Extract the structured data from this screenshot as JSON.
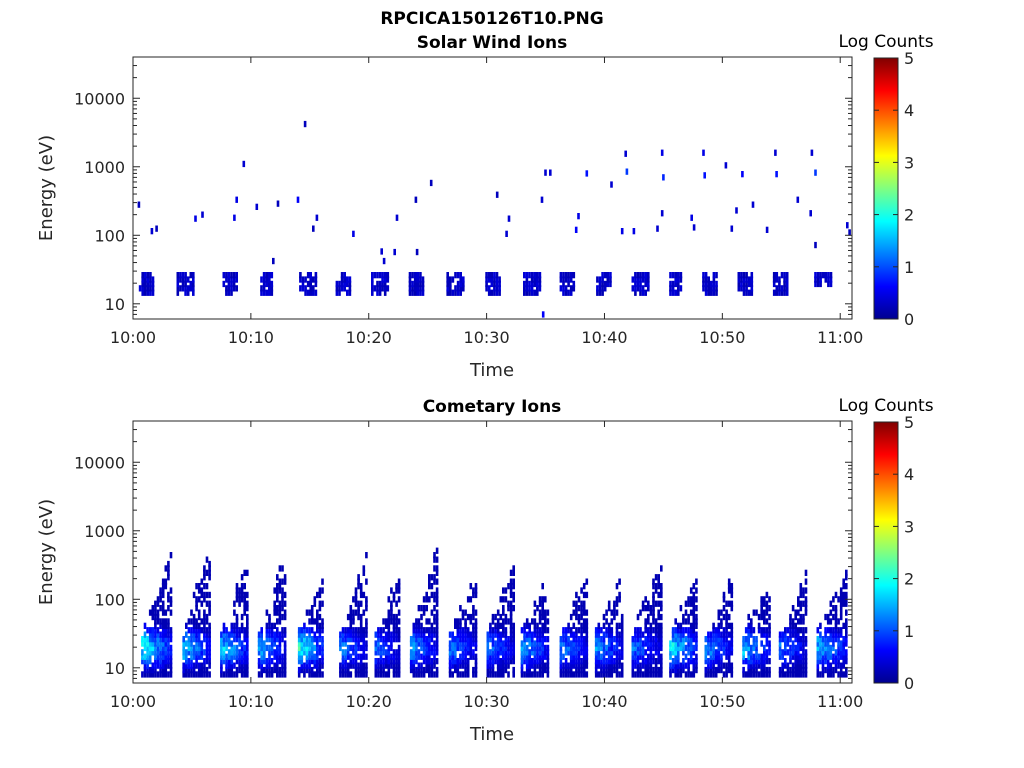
{
  "figure_title": "RPCICA150126T10.PNG",
  "chart_data": [
    {
      "type": "heatmap",
      "title": "Solar Wind Ions",
      "xlabel": "Time",
      "ylabel": "Energy (eV)",
      "x_ticks": [
        "10:00",
        "10:10",
        "10:20",
        "10:30",
        "10:40",
        "10:50",
        "11:00"
      ],
      "x_range_minutes": [
        0,
        61
      ],
      "y_scale": "log",
      "y_ticks": [
        "10",
        "100",
        "1000",
        "10000"
      ],
      "y_range": [
        6,
        40000
      ],
      "colorbar": {
        "label": "Log Counts",
        "ticks": [
          "0",
          "1",
          "2",
          "3",
          "4",
          "5"
        ],
        "range": [
          0,
          5
        ],
        "colormap": "jet"
      },
      "bands": [
        {
          "t0": 0.6,
          "t1": 1.7,
          "e0": 13,
          "e1": 28,
          "z": 0.35
        },
        {
          "t0": 3.8,
          "t1": 5.2,
          "e0": 13,
          "e1": 28,
          "z": 0.35
        },
        {
          "t0": 7.7,
          "t1": 9.0,
          "e0": 13,
          "e1": 28,
          "z": 0.35
        },
        {
          "t0": 10.9,
          "t1": 12.0,
          "e0": 13,
          "e1": 28,
          "z": 0.35
        },
        {
          "t0": 14.2,
          "t1": 15.6,
          "e0": 13,
          "e1": 28,
          "z": 0.35
        },
        {
          "t0": 17.3,
          "t1": 18.6,
          "e0": 13,
          "e1": 28,
          "z": 0.35
        },
        {
          "t0": 20.3,
          "t1": 21.7,
          "e0": 13,
          "e1": 28,
          "z": 0.35
        },
        {
          "t0": 23.5,
          "t1": 24.8,
          "e0": 13,
          "e1": 28,
          "z": 0.35
        },
        {
          "t0": 26.7,
          "t1": 28.2,
          "e0": 13,
          "e1": 28,
          "z": 0.35
        },
        {
          "t0": 30.0,
          "t1": 31.3,
          "e0": 13,
          "e1": 28,
          "z": 0.35
        },
        {
          "t0": 33.2,
          "t1": 34.6,
          "e0": 13,
          "e1": 30,
          "z": 0.35
        },
        {
          "t0": 36.3,
          "t1": 37.5,
          "e0": 13,
          "e1": 30,
          "z": 0.35
        },
        {
          "t0": 39.4,
          "t1": 40.5,
          "e0": 13,
          "e1": 30,
          "z": 0.35
        },
        {
          "t0": 42.4,
          "t1": 43.8,
          "e0": 13,
          "e1": 30,
          "z": 0.35
        },
        {
          "t0": 45.6,
          "t1": 46.6,
          "e0": 13,
          "e1": 28,
          "z": 0.35
        },
        {
          "t0": 48.4,
          "t1": 49.6,
          "e0": 13,
          "e1": 28,
          "z": 0.35
        },
        {
          "t0": 51.4,
          "t1": 52.7,
          "e0": 13,
          "e1": 30,
          "z": 0.35
        },
        {
          "t0": 54.4,
          "t1": 55.5,
          "e0": 13,
          "e1": 28,
          "z": 0.35
        },
        {
          "t0": 57.9,
          "t1": 59.3,
          "e0": 17,
          "e1": 28,
          "z": 0.35
        }
      ],
      "points": [
        {
          "t": 0.5,
          "e": 280,
          "z": 0.3
        },
        {
          "t": 1.6,
          "e": 115,
          "z": 0.4
        },
        {
          "t": 2.0,
          "e": 125,
          "z": 0.3
        },
        {
          "t": 5.3,
          "e": 175,
          "z": 0.5
        },
        {
          "t": 5.9,
          "e": 200,
          "z": 0.4
        },
        {
          "t": 8.6,
          "e": 180,
          "z": 0.5
        },
        {
          "t": 8.8,
          "e": 330,
          "z": 0.5
        },
        {
          "t": 9.4,
          "e": 1100,
          "z": 0.4
        },
        {
          "t": 10.5,
          "e": 260,
          "z": 0.4
        },
        {
          "t": 11.9,
          "e": 42,
          "z": 0.3
        },
        {
          "t": 12.3,
          "e": 290,
          "z": 0.3
        },
        {
          "t": 14.0,
          "e": 330,
          "z": 0.6
        },
        {
          "t": 14.6,
          "e": 4200,
          "z": 0.3
        },
        {
          "t": 15.3,
          "e": 125,
          "z": 0.3
        },
        {
          "t": 15.6,
          "e": 180,
          "z": 0.4
        },
        {
          "t": 18.7,
          "e": 105,
          "z": 0.5
        },
        {
          "t": 21.1,
          "e": 58,
          "z": 0.4
        },
        {
          "t": 21.3,
          "e": 42,
          "z": 0.4
        },
        {
          "t": 22.2,
          "e": 57,
          "z": 0.4
        },
        {
          "t": 22.4,
          "e": 180,
          "z": 0.4
        },
        {
          "t": 24.0,
          "e": 330,
          "z": 0.3
        },
        {
          "t": 24.1,
          "e": 57,
          "z": 0.3
        },
        {
          "t": 25.3,
          "e": 580,
          "z": 0.3
        },
        {
          "t": 30.9,
          "e": 390,
          "z": 0.3
        },
        {
          "t": 31.7,
          "e": 105,
          "z": 0.4
        },
        {
          "t": 31.9,
          "e": 175,
          "z": 0.4
        },
        {
          "t": 34.7,
          "e": 330,
          "z": 0.4
        },
        {
          "t": 34.8,
          "e": 7,
          "z": 0.6
        },
        {
          "t": 35.0,
          "e": 820,
          "z": 0.4
        },
        {
          "t": 35.4,
          "e": 820,
          "z": 0.4
        },
        {
          "t": 37.6,
          "e": 120,
          "z": 0.6
        },
        {
          "t": 37.8,
          "e": 190,
          "z": 0.5
        },
        {
          "t": 38.5,
          "e": 800,
          "z": 0.7
        },
        {
          "t": 40.6,
          "e": 550,
          "z": 0.4
        },
        {
          "t": 41.5,
          "e": 115,
          "z": 0.5
        },
        {
          "t": 41.8,
          "e": 1550,
          "z": 0.4
        },
        {
          "t": 41.9,
          "e": 850,
          "z": 0.9
        },
        {
          "t": 42.5,
          "e": 115,
          "z": 0.5
        },
        {
          "t": 44.5,
          "e": 125,
          "z": 0.4
        },
        {
          "t": 44.9,
          "e": 210,
          "z": 0.4
        },
        {
          "t": 44.9,
          "e": 1600,
          "z": 0.5
        },
        {
          "t": 45.0,
          "e": 700,
          "z": 0.8
        },
        {
          "t": 47.4,
          "e": 180,
          "z": 0.5
        },
        {
          "t": 47.6,
          "e": 130,
          "z": 0.4
        },
        {
          "t": 48.4,
          "e": 1600,
          "z": 0.5
        },
        {
          "t": 48.5,
          "e": 750,
          "z": 0.7
        },
        {
          "t": 50.3,
          "e": 1050,
          "z": 0.4
        },
        {
          "t": 50.8,
          "e": 125,
          "z": 0.4
        },
        {
          "t": 51.2,
          "e": 230,
          "z": 0.4
        },
        {
          "t": 51.7,
          "e": 780,
          "z": 0.6
        },
        {
          "t": 52.6,
          "e": 280,
          "z": 0.4
        },
        {
          "t": 53.8,
          "e": 120,
          "z": 0.4
        },
        {
          "t": 54.5,
          "e": 1600,
          "z": 0.4
        },
        {
          "t": 54.6,
          "e": 780,
          "z": 0.7
        },
        {
          "t": 56.4,
          "e": 330,
          "z": 0.4
        },
        {
          "t": 57.5,
          "e": 210,
          "z": 0.4
        },
        {
          "t": 57.6,
          "e": 1600,
          "z": 0.4
        },
        {
          "t": 57.9,
          "e": 820,
          "z": 0.9
        },
        {
          "t": 57.9,
          "e": 72,
          "z": 0.3
        },
        {
          "t": 60.6,
          "e": 140,
          "z": 0.4
        },
        {
          "t": 60.8,
          "e": 110,
          "z": 0.3
        }
      ]
    },
    {
      "type": "heatmap",
      "title": "Cometary Ions",
      "xlabel": "Time",
      "ylabel": "Energy (eV)",
      "x_ticks": [
        "10:00",
        "10:10",
        "10:20",
        "10:30",
        "10:40",
        "10:50",
        "11:00"
      ],
      "x_range_minutes": [
        0,
        61
      ],
      "y_scale": "log",
      "y_ticks": [
        "10",
        "100",
        "1000",
        "10000"
      ],
      "y_range": [
        6,
        40000
      ],
      "colorbar": {
        "label": "Log Counts",
        "ticks": [
          "0",
          "1",
          "2",
          "3",
          "4",
          "5"
        ],
        "range": [
          0,
          5
        ],
        "colormap": "jet"
      },
      "bursts": [
        {
          "t0": 0.8,
          "t1": 3.2,
          "emax_top": 420,
          "zmax": 2.0
        },
        {
          "t0": 4.3,
          "t1": 6.4,
          "emax_top": 550,
          "zmax": 1.7
        },
        {
          "t0": 7.5,
          "t1": 9.6,
          "emax_top": 400,
          "zmax": 1.7
        },
        {
          "t0": 10.7,
          "t1": 12.8,
          "emax_top": 400,
          "zmax": 1.5
        },
        {
          "t0": 14.1,
          "t1": 16.1,
          "emax_top": 200,
          "zmax": 2.0
        },
        {
          "t0": 17.6,
          "t1": 19.9,
          "emax_top": 450,
          "zmax": 1.3
        },
        {
          "t0": 20.6,
          "t1": 22.6,
          "emax_top": 220,
          "zmax": 1.2
        },
        {
          "t0": 23.6,
          "t1": 25.9,
          "emax_top": 450,
          "zmax": 1.4
        },
        {
          "t0": 26.9,
          "t1": 29.0,
          "emax_top": 180,
          "zmax": 1.3
        },
        {
          "t0": 30.1,
          "t1": 32.2,
          "emax_top": 300,
          "zmax": 1.2
        },
        {
          "t0": 33.0,
          "t1": 35.1,
          "emax_top": 200,
          "zmax": 1.5
        },
        {
          "t0": 36.3,
          "t1": 38.6,
          "emax_top": 200,
          "zmax": 1.3
        },
        {
          "t0": 39.3,
          "t1": 41.5,
          "emax_top": 200,
          "zmax": 1.4
        },
        {
          "t0": 42.4,
          "t1": 44.9,
          "emax_top": 300,
          "zmax": 1.2
        },
        {
          "t0": 45.6,
          "t1": 47.8,
          "emax_top": 220,
          "zmax": 1.9
        },
        {
          "t0": 48.6,
          "t1": 50.9,
          "emax_top": 200,
          "zmax": 1.4
        },
        {
          "t0": 51.8,
          "t1": 54.0,
          "emax_top": 200,
          "zmax": 1.6
        },
        {
          "t0": 54.9,
          "t1": 57.2,
          "emax_top": 200,
          "zmax": 1.2
        },
        {
          "t0": 58.1,
          "t1": 60.6,
          "emax_top": 250,
          "zmax": 1.6
        }
      ]
    }
  ]
}
